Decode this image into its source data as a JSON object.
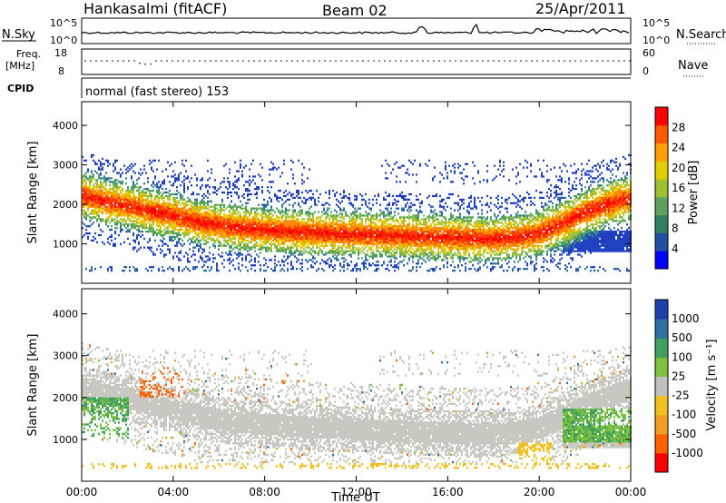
{
  "header": {
    "station": "Hankasalmi (fitACF)",
    "beam": "Beam 02",
    "date": "25/Apr/2011"
  },
  "strip": {
    "nsky_label": "N.Sky",
    "nsky_ticks": [
      "10^5",
      "10^0"
    ],
    "nsearch_label": "N.Search",
    "nsearch_ticks": [
      "10^5",
      "10^0"
    ],
    "freq_label_top": "Freq.",
    "freq_label_unit": "[MHz]",
    "freq_ticks": [
      "18",
      "8"
    ],
    "nave_label": "Nave",
    "nave_ticks": [
      "60",
      "0"
    ],
    "cpid_label": "CPID",
    "cpid_text": "normal (fast stereo) 153"
  },
  "chart_data": [
    {
      "type": "heatmap",
      "name": "power-panel",
      "ylabel": "Slant Range [km]",
      "ylim": [
        0,
        4600
      ],
      "y_ticks": [
        "1000",
        "2000",
        "3000",
        "4000"
      ],
      "xlim_hours": [
        0,
        24
      ],
      "colorbar_label": "Power [dB]",
      "colorbar_ticks": [
        "28",
        "24",
        "20",
        "16",
        "12",
        "8",
        "4"
      ],
      "colorbar_colors": [
        "#ff0000",
        "#ff5a00",
        "#ffa000",
        "#e0d000",
        "#a0c030",
        "#60a060",
        "#308060",
        "#2050a0",
        "#0000ff"
      ],
      "echo_band": {
        "time_hours": [
          0,
          1,
          2,
          3,
          4,
          5,
          6,
          7,
          8,
          9,
          10,
          11,
          12,
          13,
          14,
          15,
          16,
          17,
          18,
          19,
          20,
          21,
          22,
          23,
          24
        ],
        "center_km": [
          2200,
          2050,
          1950,
          1800,
          1700,
          1550,
          1450,
          1380,
          1330,
          1300,
          1260,
          1240,
          1220,
          1200,
          1180,
          1160,
          1140,
          1120,
          1100,
          1150,
          1250,
          1500,
          1800,
          2000,
          2150
        ]
      }
    },
    {
      "type": "heatmap",
      "name": "velocity-panel",
      "ylabel": "Slant Range [km]",
      "ylim": [
        0,
        4600
      ],
      "y_ticks": [
        "1000",
        "2000",
        "3000",
        "4000"
      ],
      "xlabel": "Time UT",
      "x_ticks": [
        "00:00",
        "04:00",
        "08:00",
        "12:00",
        "16:00",
        "20:00",
        "00:00"
      ],
      "colorbar_label": "Velocity [m s⁻¹]",
      "colorbar_ticks": [
        "1000",
        "500",
        "100",
        "25",
        "-25",
        "-100",
        "-500",
        "-1000"
      ],
      "colorbar_colors": [
        "#2040b0",
        "#3070a0",
        "#40a060",
        "#80c040",
        "#c0c0c0",
        "#f0c020",
        "#f0a020",
        "#ff6000",
        "#ff0000"
      ]
    }
  ]
}
